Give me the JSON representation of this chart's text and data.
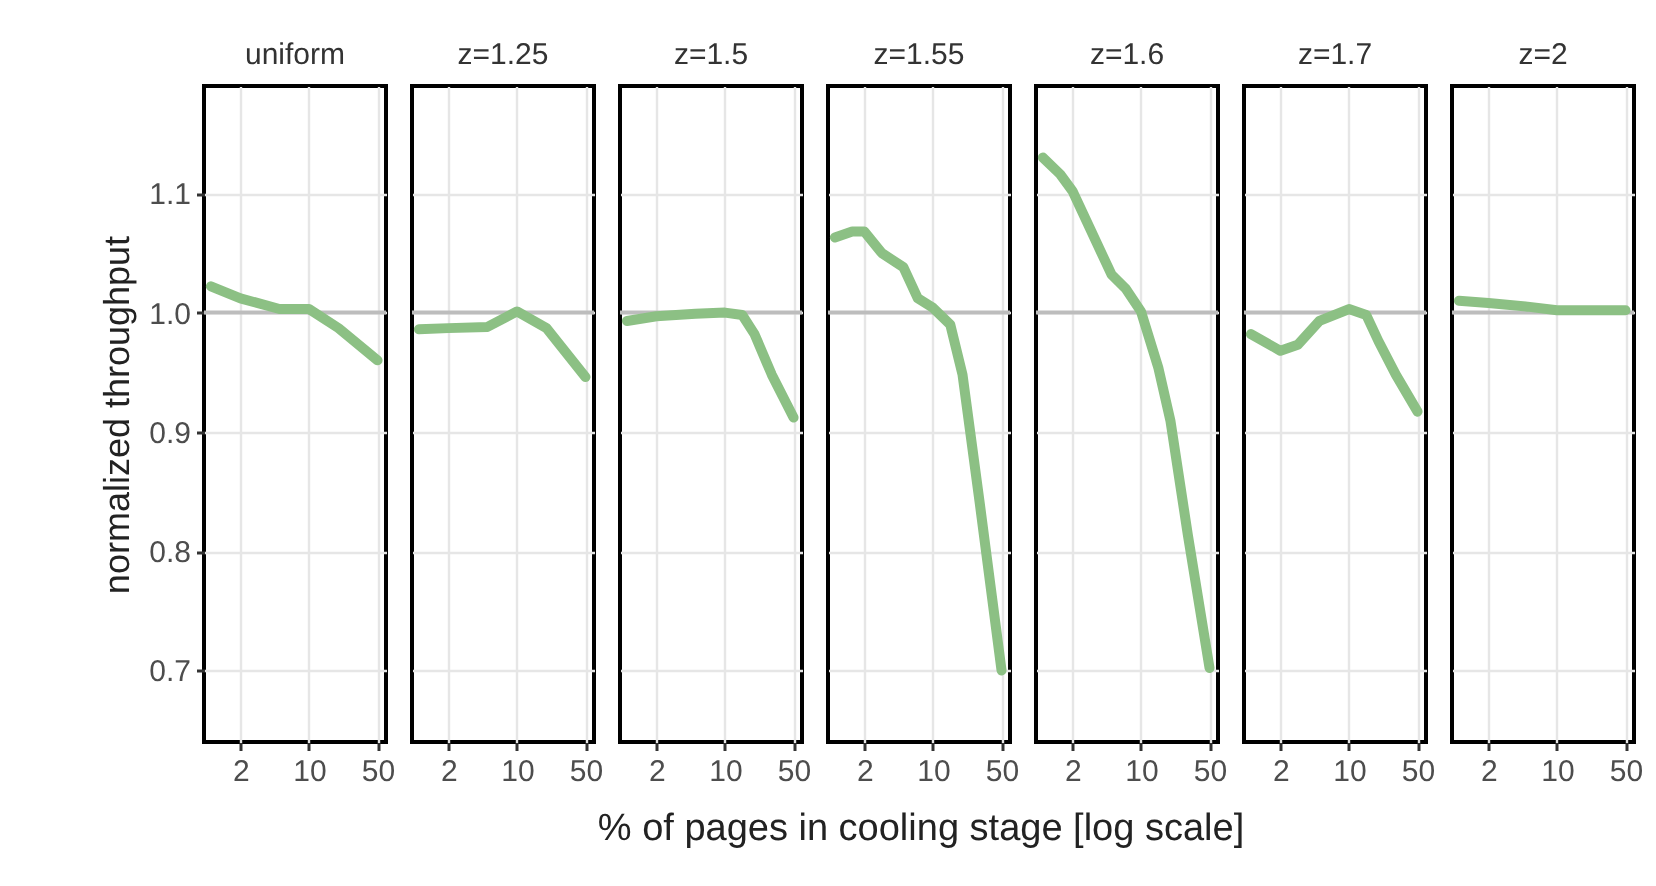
{
  "chart_data": [
    {
      "type": "line",
      "title": "uniform",
      "ylabel": "normalized throughput",
      "x": [
        1,
        2,
        5,
        10,
        20,
        50
      ],
      "values": [
        1.022,
        1.012,
        1.003,
        1.003,
        0.987,
        0.96
      ],
      "color": "#8cc084",
      "xlim": [
        0.85,
        61
      ],
      "xticks": [
        2,
        10,
        50
      ],
      "ylim": [
        0.64,
        1.19
      ],
      "yticks": [
        0.7,
        0.8,
        0.9,
        {
          "value": 1,
          "label": "1.0"
        },
        1.1
      ],
      "log": "x",
      "grid": true,
      "ref_lines": [
        {
          "axis": "y",
          "value": 1,
          "color": "#bdbdbd"
        }
      ]
    },
    {
      "type": "line",
      "title": "z=1.25",
      "x": [
        1,
        2,
        5,
        10,
        20,
        50
      ],
      "values": [
        0.986,
        0.987,
        0.988,
        1.001,
        0.987,
        0.946
      ],
      "color": "#8cc084",
      "xlim": [
        0.85,
        61
      ],
      "xticks": [
        2,
        10,
        50
      ],
      "ylim": [
        0.64,
        1.19
      ],
      "yticks": [
        0.7,
        0.8,
        0.9,
        1,
        1.1
      ],
      "log": "x",
      "grid": true,
      "tick_labels": "x",
      "ref_lines": [
        {
          "axis": "y",
          "value": 1,
          "color": "#bdbdbd"
        }
      ]
    },
    {
      "type": "line",
      "title": "z=1.5",
      "x": [
        1,
        2,
        5,
        10,
        15,
        20,
        30,
        50
      ],
      "values": [
        0.993,
        0.997,
        0.999,
        1.0,
        0.998,
        0.982,
        0.948,
        0.912
      ],
      "color": "#8cc084",
      "xlim": [
        0.85,
        61
      ],
      "xticks": [
        2,
        10,
        50
      ],
      "ylim": [
        0.64,
        1.19
      ],
      "yticks": [
        0.7,
        0.8,
        0.9,
        1,
        1.1
      ],
      "log": "x",
      "grid": true,
      "tick_labels": "x",
      "ref_lines": [
        {
          "axis": "y",
          "value": 1,
          "color": "#bdbdbd"
        }
      ]
    },
    {
      "type": "line",
      "title": "z=1.55",
      "xlabel": "% of pages in cooling stage [log scale]",
      "x": [
        1,
        1.5,
        2,
        3,
        5,
        7,
        10,
        15,
        20,
        30,
        50
      ],
      "values": [
        1.063,
        1.068,
        1.068,
        1.05,
        1.038,
        1.012,
        1.004,
        0.99,
        0.948,
        0.84,
        0.7
      ],
      "color": "#8cc084",
      "xlim": [
        0.85,
        61
      ],
      "xticks": [
        2,
        10,
        50
      ],
      "ylim": [
        0.64,
        1.19
      ],
      "yticks": [
        0.7,
        0.8,
        0.9,
        1,
        1.1
      ],
      "log": "x",
      "grid": true,
      "tick_labels": "x",
      "ref_lines": [
        {
          "axis": "y",
          "value": 1,
          "color": "#bdbdbd"
        }
      ]
    },
    {
      "type": "line",
      "title": "z=1.6",
      "x": [
        1,
        1.5,
        2,
        3,
        5,
        7,
        10,
        15,
        20,
        30,
        50
      ],
      "values": [
        1.13,
        1.116,
        1.102,
        1.071,
        1.032,
        1.02,
        1.001,
        0.954,
        0.909,
        0.814,
        0.702
      ],
      "color": "#8cc084",
      "xlim": [
        0.85,
        61
      ],
      "xticks": [
        2,
        10,
        50
      ],
      "ylim": [
        0.64,
        1.19
      ],
      "yticks": [
        0.7,
        0.8,
        0.9,
        1,
        1.1
      ],
      "log": "x",
      "grid": true,
      "tick_labels": "x",
      "ref_lines": [
        {
          "axis": "y",
          "value": 1,
          "color": "#bdbdbd"
        }
      ]
    },
    {
      "type": "line",
      "title": "z=1.7",
      "x": [
        1,
        2,
        3,
        5,
        10,
        15,
        20,
        30,
        50
      ],
      "values": [
        0.982,
        0.968,
        0.973,
        0.993,
        1.003,
        0.998,
        0.976,
        0.948,
        0.917
      ],
      "color": "#8cc084",
      "xlim": [
        0.85,
        61
      ],
      "xticks": [
        2,
        10,
        50
      ],
      "ylim": [
        0.64,
        1.19
      ],
      "yticks": [
        0.7,
        0.8,
        0.9,
        1,
        1.1
      ],
      "log": "x",
      "grid": true,
      "tick_labels": "x",
      "ref_lines": [
        {
          "axis": "y",
          "value": 1,
          "color": "#bdbdbd"
        }
      ]
    },
    {
      "type": "line",
      "title": "z=2",
      "x": [
        1,
        2,
        5,
        10,
        20,
        50
      ],
      "values": [
        1.01,
        1.008,
        1.005,
        1.002,
        1.002,
        1.002
      ],
      "color": "#8cc084",
      "xlim": [
        0.85,
        61
      ],
      "xticks": [
        2,
        10,
        50
      ],
      "ylim": [
        0.64,
        1.19
      ],
      "yticks": [
        0.7,
        0.8,
        0.9,
        1,
        1.1
      ],
      "log": "x",
      "grid": true,
      "tick_labels": "x",
      "ref_lines": [
        {
          "axis": "y",
          "value": 1,
          "color": "#bdbdbd"
        }
      ]
    }
  ]
}
